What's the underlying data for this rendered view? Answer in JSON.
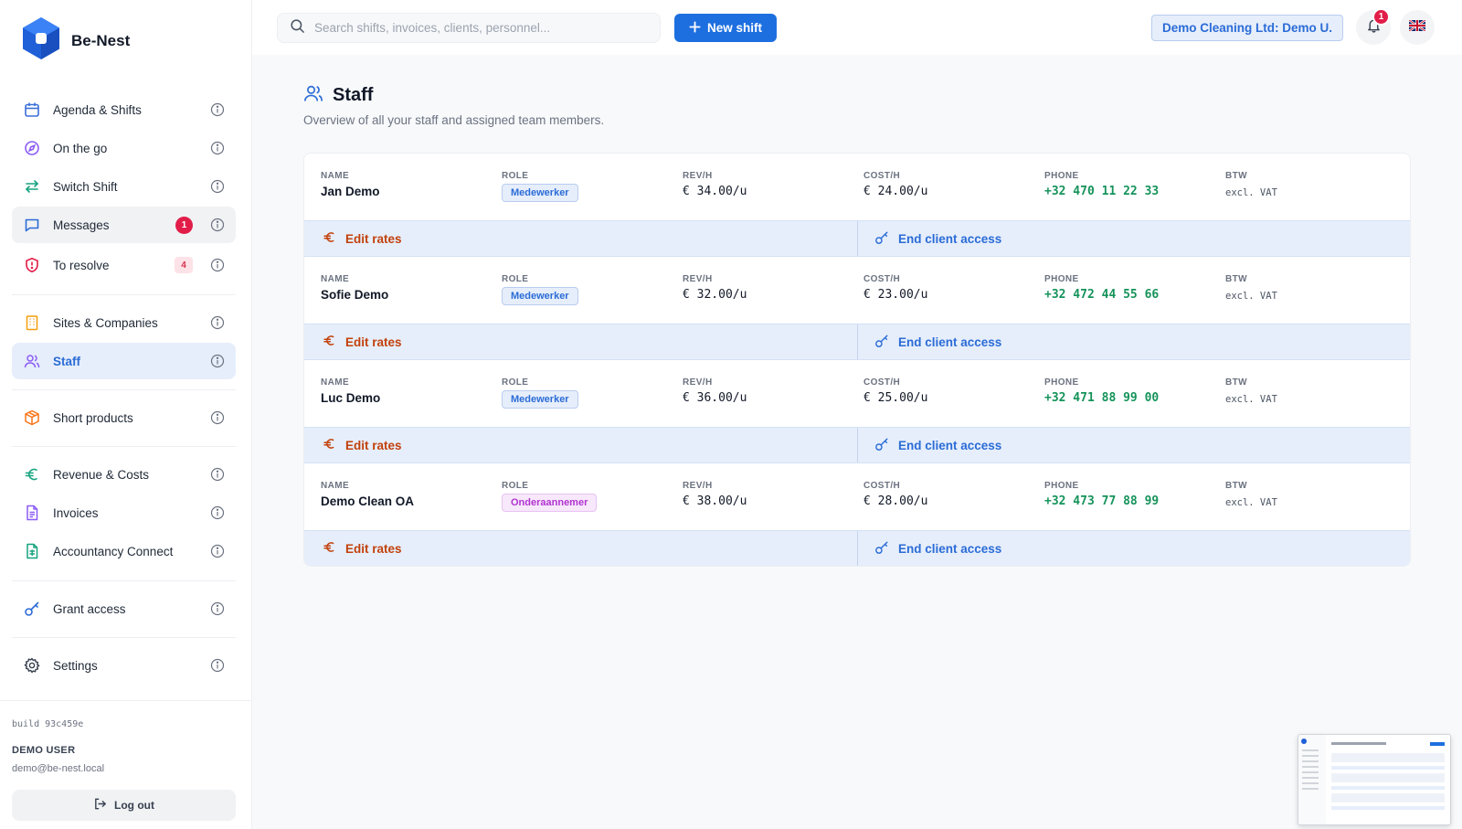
{
  "brand": {
    "name": "Be-Nest"
  },
  "sidebar": {
    "items": [
      {
        "label": "Agenda & Shifts"
      },
      {
        "label": "On the go"
      },
      {
        "label": "Switch Shift"
      },
      {
        "label": "Messages",
        "badge": "1"
      },
      {
        "label": "To resolve",
        "badge": "4"
      },
      {
        "label": "Sites & Companies"
      },
      {
        "label": "Staff"
      },
      {
        "label": "Short products"
      },
      {
        "label": "Revenue & Costs"
      },
      {
        "label": "Invoices"
      },
      {
        "label": "Accountancy Connect"
      },
      {
        "label": "Grant access"
      },
      {
        "label": "Settings"
      }
    ],
    "build": "build 93c459e",
    "user_name": "DEMO USER",
    "user_email": "demo@be-nest.local",
    "logout_label": "Log out"
  },
  "topbar": {
    "search_placeholder": "Search shifts, invoices, clients, personnel...",
    "new_shift_label": "New shift",
    "company": "Demo Cleaning Ltd: Demo U.",
    "notifications_count": "1",
    "language_flag": "🇬🇧"
  },
  "page": {
    "title": "Staff",
    "subtitle": "Overview of all your staff and assigned team members."
  },
  "columns": {
    "name": "NAME",
    "role": "ROLE",
    "rev": "REV/H",
    "cost": "COST/H",
    "phone": "PHONE",
    "btw": "BTW"
  },
  "staff": [
    {
      "name": "Jan Demo",
      "role": "Medewerker",
      "rev": "€ 34.00/u",
      "cost": "€ 24.00/u",
      "phone": "+32 470 11 22 33",
      "btw": "excl. VAT"
    },
    {
      "name": "Sofie Demo",
      "role": "Medewerker",
      "rev": "€ 32.00/u",
      "cost": "€ 23.00/u",
      "phone": "+32 472 44 55 66",
      "btw": "excl. VAT"
    },
    {
      "name": "Luc Demo",
      "role": "Medewerker",
      "rev": "€ 36.00/u",
      "cost": "€ 25.00/u",
      "phone": "+32 471 88 99 00",
      "btw": "excl. VAT"
    },
    {
      "name": "Demo Clean OA",
      "role": "Onderaannemer",
      "rev": "€ 38.00/u",
      "cost": "€ 28.00/u",
      "phone": "+32 473 77 88 99",
      "btw": "excl. VAT"
    }
  ],
  "actions": {
    "edit_rates": "Edit rates",
    "end_access": "End client access"
  },
  "colors": {
    "accent": "#1d6fe0",
    "phone": "#15935a",
    "edit": "#c2410c",
    "badge": "#e11d48"
  }
}
